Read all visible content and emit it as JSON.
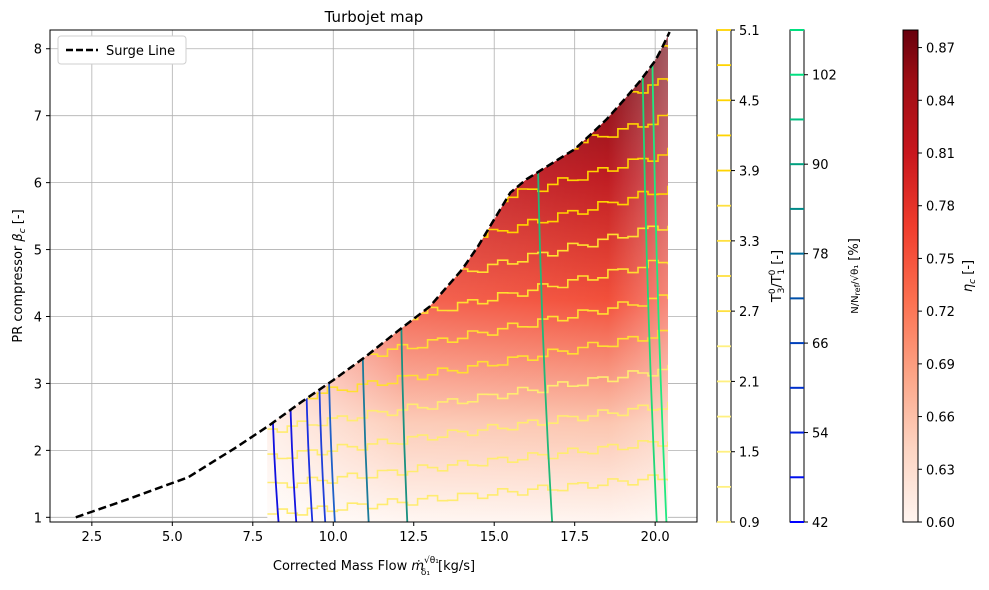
{
  "chart_data": {
    "type": "line",
    "title": "Turbojet map",
    "xlabel": "Corrected Mass Flow ṁ√θ₁/δ₁ [kg/s]",
    "ylabel": "PR compressor β_c [-]",
    "xlim": [
      1.2,
      21.3
    ],
    "ylim": [
      0.93,
      8.28
    ],
    "x_ticks": [
      "2.5",
      "5.0",
      "7.5",
      "10.0",
      "12.5",
      "15.0",
      "17.5",
      "20.0"
    ],
    "y_ticks": [
      "1",
      "2",
      "3",
      "4",
      "5",
      "6",
      "7",
      "8"
    ],
    "grid": true,
    "legend": {
      "position": "top-left",
      "entries": [
        "Surge Line"
      ]
    },
    "series": [
      {
        "name": "Surge Line",
        "style": "dashed",
        "color": "#000000",
        "x": [
          2.0,
          3.5,
          5.5,
          7.0,
          8.0,
          9.0,
          10.0,
          11.0,
          12.0,
          13.0,
          14.0,
          14.5,
          15.0,
          15.5,
          16.0,
          16.5,
          17.0,
          17.5,
          18.0,
          18.5,
          19.0,
          19.5,
          20.0,
          20.2,
          20.45
        ],
        "y": [
          1.0,
          1.25,
          1.6,
          2.05,
          2.37,
          2.72,
          3.05,
          3.4,
          3.78,
          4.15,
          4.7,
          5.05,
          5.45,
          5.85,
          6.05,
          6.2,
          6.35,
          6.5,
          6.72,
          6.95,
          7.22,
          7.5,
          7.82,
          8.0,
          8.25
        ]
      }
    ],
    "speed_lines": {
      "label": "N/N_ref/√θ₁ [%]",
      "x_positions": [
        8.3,
        8.85,
        9.35,
        9.75,
        10.05,
        11.1,
        12.3,
        16.8,
        20.05,
        20.35
      ]
    },
    "temperature_lines": {
      "label": "T₃⁰/T₁⁰ [-]",
      "levels": 13
    },
    "colorbars": [
      {
        "label": "T₃⁰/T₁⁰ [-]",
        "min": 0.9,
        "max": 5.1,
        "ticks": [
          "0.9",
          "1.5",
          "2.1",
          "2.7",
          "3.3",
          "3.9",
          "4.5",
          "5.1"
        ],
        "colormap": "yellow-discrete",
        "colors": [
          "#fffbb0",
          "#ffd700"
        ]
      },
      {
        "label": "N/N_ref/√θ₁ [%]",
        "min": 42,
        "max": 108,
        "ticks": [
          "42",
          "54",
          "66",
          "78",
          "90",
          "102"
        ],
        "colormap": "blue-green-discrete",
        "colors": [
          "#0000ff",
          "#00ff80"
        ]
      },
      {
        "label": "η_c [-]",
        "min": 0.6,
        "max": 0.88,
        "ticks": [
          "0.60",
          "0.63",
          "0.66",
          "0.69",
          "0.72",
          "0.75",
          "0.78",
          "0.81",
          "0.84",
          "0.87"
        ],
        "colormap": "Reds",
        "colors": [
          "#fff5f0",
          "#67000d"
        ]
      }
    ]
  }
}
